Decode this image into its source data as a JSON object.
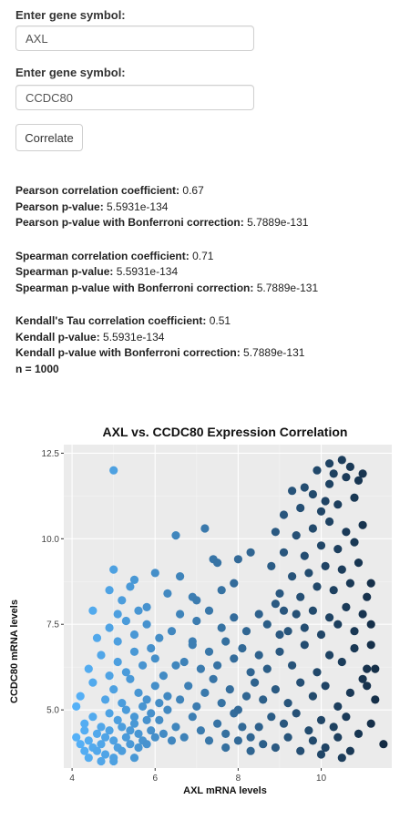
{
  "form": {
    "gene1_label": "Enter gene symbol:",
    "gene1_value": "AXL",
    "gene2_label": "Enter gene symbol:",
    "gene2_value": "CCDC80",
    "correlate_label": "Correlate"
  },
  "stats": {
    "pearson": [
      {
        "label": "Pearson correlation coefficient:",
        "value": "0.67"
      },
      {
        "label": "Pearson p-value:",
        "value": "5.5931e-134"
      },
      {
        "label": "Pearson p-value with Bonferroni correction:",
        "value": "5.7889e-131"
      }
    ],
    "spearman": [
      {
        "label": "Spearman correlation coefficient:",
        "value": "0.71"
      },
      {
        "label": "Spearman p-value:",
        "value": "5.5931e-134"
      },
      {
        "label": "Spearman p-value with Bonferroni correction:",
        "value": "5.7889e-131"
      }
    ],
    "kendall": [
      {
        "label": "Kendall's Tau correlation coefficient:",
        "value": "0.51"
      },
      {
        "label": "Kendall p-value:",
        "value": "5.5931e-134"
      },
      {
        "label": "Kendall p-value with Bonferroni correction:",
        "value": "5.7889e-131"
      }
    ],
    "n_label": "n = 1000"
  },
  "chart_data": {
    "type": "scatter",
    "title": "AXL vs. CCDC80 Expression Correlation",
    "xlabel": "AXL mRNA levels",
    "ylabel": "CCDC80 mRNA levels",
    "xlim": [
      3.8,
      11.7
    ],
    "ylim": [
      3.3,
      12.75
    ],
    "xticks": [
      4,
      6,
      8,
      10
    ],
    "xtick_labels": [
      "4",
      "6",
      "8",
      "10"
    ],
    "yticks": [
      5.0,
      7.5,
      10.0,
      12.5
    ],
    "ytick_labels": [
      "5.0",
      "7.5",
      "10.0",
      "12.5"
    ],
    "grid": true,
    "legend": "none",
    "color_low": "#56b1f7",
    "color_high": "#132b43",
    "panel_background": "#ebebeb",
    "points": [
      [
        4.1,
        4.2
      ],
      [
        4.2,
        4.0
      ],
      [
        4.3,
        3.8
      ],
      [
        4.4,
        4.1
      ],
      [
        4.5,
        3.9
      ],
      [
        4.6,
        4.3
      ],
      [
        4.7,
        4.0
      ],
      [
        4.8,
        3.7
      ],
      [
        4.9,
        4.4
      ],
      [
        5.0,
        4.1
      ],
      [
        5.1,
        3.9
      ],
      [
        5.2,
        4.5
      ],
      [
        5.3,
        4.2
      ],
      [
        5.4,
        4.0
      ],
      [
        5.5,
        4.6
      ],
      [
        5.6,
        4.3
      ],
      [
        5.7,
        4.1
      ],
      [
        5.8,
        4.7
      ],
      [
        5.9,
        4.4
      ],
      [
        6.0,
        4.2
      ],
      [
        4.3,
        4.6
      ],
      [
        4.5,
        4.8
      ],
      [
        4.7,
        4.5
      ],
      [
        4.9,
        4.9
      ],
      [
        5.1,
        4.7
      ],
      [
        5.3,
        5.0
      ],
      [
        5.5,
        4.8
      ],
      [
        5.7,
        5.1
      ],
      [
        5.9,
        4.9
      ],
      [
        6.1,
        5.2
      ],
      [
        4.4,
        3.6
      ],
      [
        4.6,
        3.8
      ],
      [
        4.8,
        4.2
      ],
      [
        5.0,
        3.6
      ],
      [
        5.2,
        3.8
      ],
      [
        5.4,
        4.4
      ],
      [
        5.6,
        3.9
      ],
      [
        5.8,
        4.0
      ],
      [
        6.2,
        4.3
      ],
      [
        6.4,
        4.1
      ],
      [
        4.2,
        5.4
      ],
      [
        4.5,
        5.8
      ],
      [
        4.8,
        5.3
      ],
      [
        5.0,
        5.6
      ],
      [
        5.2,
        5.2
      ],
      [
        5.4,
        5.9
      ],
      [
        5.6,
        5.5
      ],
      [
        5.8,
        5.3
      ],
      [
        6.0,
        5.7
      ],
      [
        6.3,
        5.4
      ],
      [
        4.4,
        6.2
      ],
      [
        4.7,
        6.6
      ],
      [
        4.9,
        6.0
      ],
      [
        5.1,
        6.4
      ],
      [
        5.3,
        6.1
      ],
      [
        5.5,
        6.7
      ],
      [
        5.7,
        6.3
      ],
      [
        6.0,
        6.5
      ],
      [
        6.2,
        6.0
      ],
      [
        6.5,
        6.3
      ],
      [
        4.6,
        7.1
      ],
      [
        4.9,
        7.4
      ],
      [
        5.1,
        7.0
      ],
      [
        5.3,
        7.6
      ],
      [
        5.5,
        7.2
      ],
      [
        5.8,
        7.5
      ],
      [
        6.1,
        7.1
      ],
      [
        6.4,
        7.3
      ],
      [
        6.6,
        7.8
      ],
      [
        6.9,
        7.0
      ],
      [
        4.5,
        7.9
      ],
      [
        4.9,
        8.5
      ],
      [
        5.0,
        9.1
      ],
      [
        5.2,
        8.2
      ],
      [
        5.5,
        8.8
      ],
      [
        5.8,
        8.0
      ],
      [
        6.0,
        9.0
      ],
      [
        6.3,
        8.4
      ],
      [
        6.6,
        8.9
      ],
      [
        6.9,
        8.3
      ],
      [
        5.0,
        12.0
      ],
      [
        5.1,
        7.8
      ],
      [
        5.4,
        8.6
      ],
      [
        5.6,
        7.9
      ],
      [
        6.5,
        10.1
      ],
      [
        7.2,
        10.3
      ],
      [
        7.4,
        9.4
      ],
      [
        7.5,
        9.3
      ],
      [
        7.6,
        8.5
      ],
      [
        7.9,
        8.7
      ],
      [
        6.5,
        4.5
      ],
      [
        6.7,
        4.2
      ],
      [
        6.9,
        4.8
      ],
      [
        7.1,
        4.4
      ],
      [
        7.3,
        4.1
      ],
      [
        7.5,
        4.6
      ],
      [
        7.7,
        4.3
      ],
      [
        7.9,
        4.9
      ],
      [
        8.1,
        4.5
      ],
      [
        8.3,
        4.2
      ],
      [
        6.6,
        5.3
      ],
      [
        6.8,
        5.7
      ],
      [
        7.0,
        5.1
      ],
      [
        7.2,
        5.5
      ],
      [
        7.4,
        5.9
      ],
      [
        7.6,
        5.2
      ],
      [
        7.8,
        5.6
      ],
      [
        8.0,
        5.0
      ],
      [
        8.2,
        5.4
      ],
      [
        8.4,
        5.8
      ],
      [
        6.7,
        6.4
      ],
      [
        6.9,
        6.9
      ],
      [
        7.1,
        6.2
      ],
      [
        7.3,
        6.7
      ],
      [
        7.5,
        6.3
      ],
      [
        7.7,
        7.0
      ],
      [
        7.9,
        6.5
      ],
      [
        8.1,
        6.8
      ],
      [
        8.3,
        6.1
      ],
      [
        8.5,
        6.6
      ],
      [
        7.0,
        7.6
      ],
      [
        7.3,
        7.9
      ],
      [
        7.6,
        7.4
      ],
      [
        7.9,
        7.7
      ],
      [
        8.2,
        7.3
      ],
      [
        8.5,
        7.8
      ],
      [
        8.7,
        7.5
      ],
      [
        8.9,
        8.1
      ],
      [
        9.0,
        7.2
      ],
      [
        9.1,
        7.9
      ],
      [
        7.7,
        3.9
      ],
      [
        8.0,
        4.1
      ],
      [
        8.3,
        3.8
      ],
      [
        8.6,
        4.0
      ],
      [
        8.9,
        3.9
      ],
      [
        9.2,
        4.2
      ],
      [
        9.5,
        3.8
      ],
      [
        9.8,
        4.1
      ],
      [
        10.1,
        3.9
      ],
      [
        10.4,
        4.2
      ],
      [
        8.5,
        4.5
      ],
      [
        8.8,
        4.8
      ],
      [
        9.1,
        4.6
      ],
      [
        9.4,
        4.9
      ],
      [
        9.7,
        4.4
      ],
      [
        10.0,
        4.7
      ],
      [
        10.3,
        4.5
      ],
      [
        10.6,
        4.8
      ],
      [
        10.9,
        4.3
      ],
      [
        11.2,
        4.6
      ],
      [
        8.6,
        5.3
      ],
      [
        8.9,
        5.6
      ],
      [
        9.2,
        5.2
      ],
      [
        9.5,
        5.8
      ],
      [
        9.8,
        5.4
      ],
      [
        10.1,
        5.7
      ],
      [
        10.4,
        5.1
      ],
      [
        10.7,
        5.5
      ],
      [
        11.0,
        5.9
      ],
      [
        11.3,
        5.3
      ],
      [
        8.7,
        6.2
      ],
      [
        9.0,
        6.7
      ],
      [
        9.3,
        6.3
      ],
      [
        9.6,
        6.9
      ],
      [
        9.9,
        6.1
      ],
      [
        10.2,
        6.6
      ],
      [
        10.5,
        6.4
      ],
      [
        10.8,
        6.8
      ],
      [
        11.1,
        6.2
      ],
      [
        11.2,
        6.9
      ],
      [
        9.2,
        7.3
      ],
      [
        9.4,
        7.8
      ],
      [
        9.6,
        7.4
      ],
      [
        9.8,
        7.9
      ],
      [
        10.0,
        7.2
      ],
      [
        10.2,
        7.7
      ],
      [
        10.4,
        7.5
      ],
      [
        10.6,
        8.0
      ],
      [
        10.8,
        7.3
      ],
      [
        11.0,
        7.8
      ],
      [
        9.0,
        8.4
      ],
      [
        9.3,
        8.9
      ],
      [
        9.5,
        8.3
      ],
      [
        9.7,
        9.0
      ],
      [
        9.9,
        8.6
      ],
      [
        10.1,
        9.2
      ],
      [
        10.3,
        8.5
      ],
      [
        10.5,
        9.1
      ],
      [
        10.7,
        8.7
      ],
      [
        10.9,
        9.3
      ],
      [
        9.1,
        9.6
      ],
      [
        9.4,
        10.1
      ],
      [
        9.6,
        9.5
      ],
      [
        9.8,
        10.3
      ],
      [
        10.0,
        9.8
      ],
      [
        10.2,
        10.5
      ],
      [
        10.4,
        9.7
      ],
      [
        10.6,
        10.2
      ],
      [
        10.8,
        9.9
      ],
      [
        11.0,
        10.4
      ],
      [
        9.5,
        10.9
      ],
      [
        9.8,
        11.3
      ],
      [
        10.0,
        10.8
      ],
      [
        10.2,
        11.6
      ],
      [
        10.4,
        11.0
      ],
      [
        10.6,
        11.8
      ],
      [
        10.8,
        11.2
      ],
      [
        10.5,
        12.3
      ],
      [
        10.7,
        12.1
      ],
      [
        10.9,
        11.7
      ],
      [
        8.3,
        9.6
      ],
      [
        8.8,
        9.2
      ],
      [
        8.9,
        10.2
      ],
      [
        9.1,
        10.7
      ],
      [
        9.3,
        11.4
      ],
      [
        10.3,
        11.9
      ],
      [
        11.0,
        11.9
      ],
      [
        11.2,
        8.7
      ],
      [
        11.3,
        6.2
      ],
      [
        11.5,
        4.0
      ],
      [
        10.0,
        3.7
      ],
      [
        10.5,
        3.6
      ],
      [
        10.7,
        3.8
      ],
      [
        11.1,
        5.7
      ],
      [
        11.2,
        7.5
      ],
      [
        11.1,
        8.3
      ],
      [
        9.9,
        12.0
      ],
      [
        10.2,
        12.2
      ],
      [
        10.1,
        11.1
      ],
      [
        9.6,
        11.5
      ],
      [
        4.7,
        3.5
      ],
      [
        5.0,
        3.5
      ],
      [
        5.5,
        3.6
      ],
      [
        4.3,
        4.4
      ],
      [
        4.1,
        5.1
      ],
      [
        6.1,
        4.7
      ],
      [
        6.3,
        5.0
      ],
      [
        5.9,
        6.8
      ],
      [
        7.0,
        8.2
      ],
      [
        8.0,
        9.4
      ]
    ]
  }
}
